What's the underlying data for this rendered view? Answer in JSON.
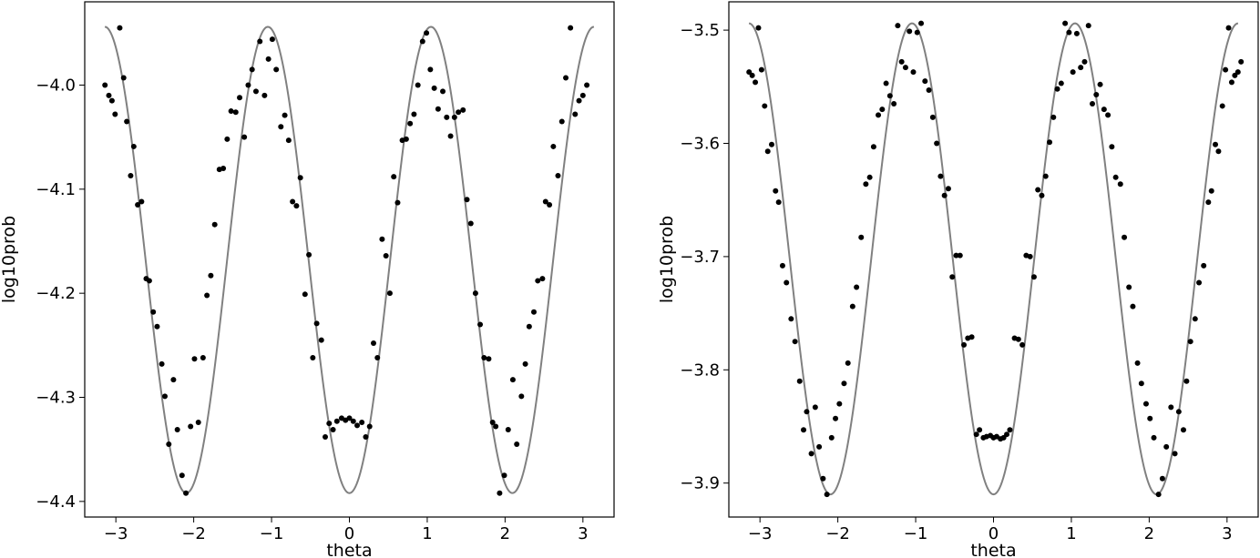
{
  "chart_data": [
    {
      "type": "scatter",
      "xlabel": "theta",
      "ylabel": "log10prob",
      "xlim": [
        -3.4,
        3.4
      ],
      "ylim": [
        -4.415,
        -3.92
      ],
      "xticks": [
        -3,
        -2,
        -1,
        0,
        1,
        2,
        3
      ],
      "xtick_labels": [
        "−3",
        "−2",
        "−1",
        "0",
        "1",
        "2",
        "3"
      ],
      "yticks": [
        -4.4,
        -4.3,
        -4.2,
        -4.1,
        -4.0
      ],
      "ytick_labels": [
        "−4.4",
        "−4.3",
        "−4.2",
        "−4.1",
        "−4.0"
      ],
      "grid": false,
      "colors": {
        "points": "#000000",
        "curve": "#808080"
      },
      "curve": {
        "form": "cosine",
        "period": 2.0944,
        "max": -3.944,
        "min": -4.392,
        "x_range": [
          -3.1416,
          3.1416
        ],
        "peak_x": 1.0472
      },
      "points": [
        [
          -3.14,
          -4.0
        ],
        [
          -3.09,
          -4.01
        ],
        [
          -3.05,
          -4.015
        ],
        [
          -3.01,
          -4.028
        ],
        [
          -2.95,
          -3.945
        ],
        [
          -2.9,
          -3.993
        ],
        [
          -2.86,
          -4.035
        ],
        [
          -2.81,
          -4.087
        ],
        [
          -2.77,
          -4.059
        ],
        [
          -2.72,
          -4.115
        ],
        [
          -2.67,
          -4.112
        ],
        [
          -2.61,
          -4.186
        ],
        [
          -2.57,
          -4.188
        ],
        [
          -2.52,
          -4.218
        ],
        [
          -2.47,
          -4.232
        ],
        [
          -2.41,
          -4.268
        ],
        [
          -2.37,
          -4.299
        ],
        [
          -2.32,
          -4.345
        ],
        [
          -2.26,
          -4.283
        ],
        [
          -2.21,
          -4.331
        ],
        [
          -2.15,
          -4.375
        ],
        [
          -2.1,
          -4.392
        ],
        [
          -2.04,
          -4.328
        ],
        [
          -1.99,
          -4.263
        ],
        [
          -1.94,
          -4.324
        ],
        [
          -1.88,
          -4.262
        ],
        [
          -1.83,
          -4.202
        ],
        [
          -1.78,
          -4.183
        ],
        [
          -1.73,
          -4.134
        ],
        [
          -1.67,
          -4.081
        ],
        [
          -1.62,
          -4.08
        ],
        [
          -1.57,
          -4.052
        ],
        [
          -1.52,
          -4.025
        ],
        [
          -1.46,
          -4.026
        ],
        [
          -1.41,
          -4.012
        ],
        [
          -1.35,
          -4.05
        ],
        [
          -1.3,
          -4.0
        ],
        [
          -1.25,
          -3.985
        ],
        [
          -1.2,
          -4.006
        ],
        [
          -1.15,
          -3.958
        ],
        [
          -1.09,
          -4.01
        ],
        [
          -1.04,
          -3.975
        ],
        [
          -0.99,
          -3.956
        ],
        [
          -0.94,
          -3.985
        ],
        [
          -0.88,
          -4.04
        ],
        [
          -0.83,
          -4.029
        ],
        [
          -0.78,
          -4.053
        ],
        [
          -0.73,
          -4.112
        ],
        [
          -0.68,
          -4.116
        ],
        [
          -0.63,
          -4.089
        ],
        [
          -0.57,
          -4.201
        ],
        [
          -0.52,
          -4.163
        ],
        [
          -0.47,
          -4.262
        ],
        [
          -0.42,
          -4.229
        ],
        [
          -0.36,
          -4.245
        ],
        [
          -0.31,
          -4.338
        ],
        [
          -0.26,
          -4.325
        ],
        [
          -0.21,
          -4.331
        ],
        [
          -0.16,
          -4.323
        ],
        [
          -0.1,
          -4.32
        ],
        [
          -0.05,
          -4.322
        ],
        [
          0.0,
          -4.32
        ],
        [
          0.05,
          -4.323
        ],
        [
          0.1,
          -4.327
        ],
        [
          0.16,
          -4.324
        ],
        [
          0.21,
          -4.338
        ],
        [
          0.26,
          -4.328
        ],
        [
          0.31,
          -4.248
        ],
        [
          0.36,
          -4.262
        ],
        [
          0.42,
          -4.148
        ],
        [
          0.47,
          -4.164
        ],
        [
          0.52,
          -4.2
        ],
        [
          0.57,
          -4.088
        ],
        [
          0.62,
          -4.113
        ],
        [
          0.68,
          -4.053
        ],
        [
          0.73,
          -4.052
        ],
        [
          0.78,
          -4.037
        ],
        [
          0.83,
          -4.028
        ],
        [
          0.88,
          -4.0
        ],
        [
          0.94,
          -3.958
        ],
        [
          0.99,
          -3.95
        ],
        [
          1.04,
          -3.985
        ],
        [
          1.09,
          -4.003
        ],
        [
          1.14,
          -4.023
        ],
        [
          1.2,
          -4.006
        ],
        [
          1.25,
          -4.031
        ],
        [
          1.3,
          -4.049
        ],
        [
          1.35,
          -4.031
        ],
        [
          1.4,
          -4.026
        ],
        [
          1.46,
          -4.024
        ],
        [
          1.51,
          -4.11
        ],
        [
          1.56,
          -4.133
        ],
        [
          1.62,
          -4.2
        ],
        [
          1.68,
          -4.23
        ],
        [
          1.73,
          -4.262
        ],
        [
          1.79,
          -4.263
        ],
        [
          1.84,
          -4.324
        ],
        [
          1.88,
          -4.328
        ],
        [
          1.93,
          -4.392
        ],
        [
          1.99,
          -4.375
        ],
        [
          2.04,
          -4.331
        ],
        [
          2.1,
          -4.283
        ],
        [
          2.15,
          -4.345
        ],
        [
          2.21,
          -4.299
        ],
        [
          2.26,
          -4.268
        ],
        [
          2.31,
          -4.232
        ],
        [
          2.37,
          -4.218
        ],
        [
          2.42,
          -4.188
        ],
        [
          2.48,
          -4.186
        ],
        [
          2.52,
          -4.112
        ],
        [
          2.57,
          -4.115
        ],
        [
          2.62,
          -4.059
        ],
        [
          2.68,
          -4.087
        ],
        [
          2.73,
          -4.035
        ],
        [
          2.78,
          -3.993
        ],
        [
          2.84,
          -3.945
        ],
        [
          2.9,
          -4.028
        ],
        [
          2.95,
          -4.015
        ],
        [
          3.0,
          -4.01
        ],
        [
          3.05,
          -4.0
        ]
      ]
    },
    {
      "type": "scatter",
      "xlabel": "theta",
      "ylabel": "log10prob",
      "xlim": [
        -3.4,
        3.4
      ],
      "ylim": [
        -3.93,
        -3.475
      ],
      "xticks": [
        -3,
        -2,
        -1,
        0,
        1,
        2,
        3
      ],
      "xtick_labels": [
        "−3",
        "−2",
        "−1",
        "0",
        "1",
        "2",
        "3"
      ],
      "yticks": [
        -3.9,
        -3.8,
        -3.7,
        -3.6,
        -3.5
      ],
      "ytick_labels": [
        "−3.9",
        "−3.8",
        "−3.7",
        "−3.6",
        "−3.5"
      ],
      "grid": false,
      "colors": {
        "points": "#000000",
        "curve": "#808080"
      },
      "curve": {
        "form": "cosine",
        "period": 2.0944,
        "max": -3.494,
        "min": -3.91,
        "x_range": [
          -3.1416,
          3.1416
        ],
        "peak_x": 1.0472
      },
      "points": [
        [
          -3.14,
          -3.537
        ],
        [
          -3.1,
          -3.54
        ],
        [
          -3.06,
          -3.546
        ],
        [
          -3.02,
          -3.498
        ],
        [
          -2.98,
          -3.535
        ],
        [
          -2.94,
          -3.567
        ],
        [
          -2.9,
          -3.607
        ],
        [
          -2.85,
          -3.601
        ],
        [
          -2.8,
          -3.642
        ],
        [
          -2.76,
          -3.652
        ],
        [
          -2.71,
          -3.708
        ],
        [
          -2.66,
          -3.723
        ],
        [
          -2.6,
          -3.755
        ],
        [
          -2.55,
          -3.775
        ],
        [
          -2.49,
          -3.81
        ],
        [
          -2.44,
          -3.853
        ],
        [
          -2.4,
          -3.837
        ],
        [
          -2.34,
          -3.874
        ],
        [
          -2.29,
          -3.833
        ],
        [
          -2.24,
          -3.868
        ],
        [
          -2.19,
          -3.896
        ],
        [
          -2.14,
          -3.91
        ],
        [
          -2.08,
          -3.86
        ],
        [
          -2.03,
          -3.843
        ],
        [
          -1.98,
          -3.83
        ],
        [
          -1.92,
          -3.812
        ],
        [
          -1.87,
          -3.794
        ],
        [
          -1.81,
          -3.744
        ],
        [
          -1.76,
          -3.727
        ],
        [
          -1.7,
          -3.683
        ],
        [
          -1.64,
          -3.636
        ],
        [
          -1.59,
          -3.63
        ],
        [
          -1.54,
          -3.603
        ],
        [
          -1.48,
          -3.575
        ],
        [
          -1.43,
          -3.57
        ],
        [
          -1.38,
          -3.547
        ],
        [
          -1.33,
          -3.558
        ],
        [
          -1.28,
          -3.565
        ],
        [
          -1.23,
          -3.496
        ],
        [
          -1.18,
          -3.528
        ],
        [
          -1.13,
          -3.533
        ],
        [
          -1.08,
          -3.501
        ],
        [
          -1.03,
          -3.537
        ],
        [
          -0.98,
          -3.502
        ],
        [
          -0.93,
          -3.494
        ],
        [
          -0.88,
          -3.545
        ],
        [
          -0.83,
          -3.553
        ],
        [
          -0.78,
          -3.577
        ],
        [
          -0.73,
          -3.6
        ],
        [
          -0.68,
          -3.629
        ],
        [
          -0.63,
          -3.646
        ],
        [
          -0.58,
          -3.64
        ],
        [
          -0.53,
          -3.718
        ],
        [
          -0.48,
          -3.699
        ],
        [
          -0.43,
          -3.699
        ],
        [
          -0.38,
          -3.778
        ],
        [
          -0.33,
          -3.772
        ],
        [
          -0.28,
          -3.771
        ],
        [
          -0.22,
          -3.857
        ],
        [
          -0.18,
          -3.853
        ],
        [
          -0.13,
          -3.86
        ],
        [
          -0.09,
          -3.859
        ],
        [
          -0.04,
          -3.858
        ],
        [
          0.0,
          -3.86
        ],
        [
          0.04,
          -3.859
        ],
        [
          0.09,
          -3.861
        ],
        [
          0.13,
          -3.86
        ],
        [
          0.17,
          -3.857
        ],
        [
          0.21,
          -3.853
        ],
        [
          0.27,
          -3.772
        ],
        [
          0.32,
          -3.773
        ],
        [
          0.37,
          -3.778
        ],
        [
          0.42,
          -3.699
        ],
        [
          0.47,
          -3.7
        ],
        [
          0.52,
          -3.718
        ],
        [
          0.57,
          -3.641
        ],
        [
          0.62,
          -3.646
        ],
        [
          0.67,
          -3.629
        ],
        [
          0.72,
          -3.599
        ],
        [
          0.77,
          -3.577
        ],
        [
          0.82,
          -3.552
        ],
        [
          0.87,
          -3.547
        ],
        [
          0.92,
          -3.494
        ],
        [
          0.97,
          -3.502
        ],
        [
          1.02,
          -3.537
        ],
        [
          1.07,
          -3.503
        ],
        [
          1.12,
          -3.533
        ],
        [
          1.17,
          -3.528
        ],
        [
          1.22,
          -3.496
        ],
        [
          1.27,
          -3.565
        ],
        [
          1.32,
          -3.557
        ],
        [
          1.37,
          -3.548
        ],
        [
          1.42,
          -3.57
        ],
        [
          1.47,
          -3.575
        ],
        [
          1.52,
          -3.603
        ],
        [
          1.57,
          -3.63
        ],
        [
          1.63,
          -3.636
        ],
        [
          1.68,
          -3.683
        ],
        [
          1.74,
          -3.727
        ],
        [
          1.79,
          -3.744
        ],
        [
          1.85,
          -3.794
        ],
        [
          1.9,
          -3.812
        ],
        [
          1.96,
          -3.83
        ],
        [
          2.01,
          -3.843
        ],
        [
          2.06,
          -3.86
        ],
        [
          2.12,
          -3.91
        ],
        [
          2.17,
          -3.896
        ],
        [
          2.22,
          -3.868
        ],
        [
          2.28,
          -3.833
        ],
        [
          2.33,
          -3.874
        ],
        [
          2.38,
          -3.837
        ],
        [
          2.44,
          -3.853
        ],
        [
          2.48,
          -3.81
        ],
        [
          2.53,
          -3.775
        ],
        [
          2.59,
          -3.755
        ],
        [
          2.64,
          -3.723
        ],
        [
          2.7,
          -3.708
        ],
        [
          2.76,
          -3.652
        ],
        [
          2.8,
          -3.642
        ],
        [
          2.85,
          -3.601
        ],
        [
          2.89,
          -3.607
        ],
        [
          2.94,
          -3.567
        ],
        [
          2.98,
          -3.535
        ],
        [
          3.02,
          -3.498
        ],
        [
          3.06,
          -3.546
        ],
        [
          3.1,
          -3.54
        ],
        [
          3.14,
          -3.537
        ],
        [
          3.18,
          -3.528
        ]
      ]
    }
  ]
}
